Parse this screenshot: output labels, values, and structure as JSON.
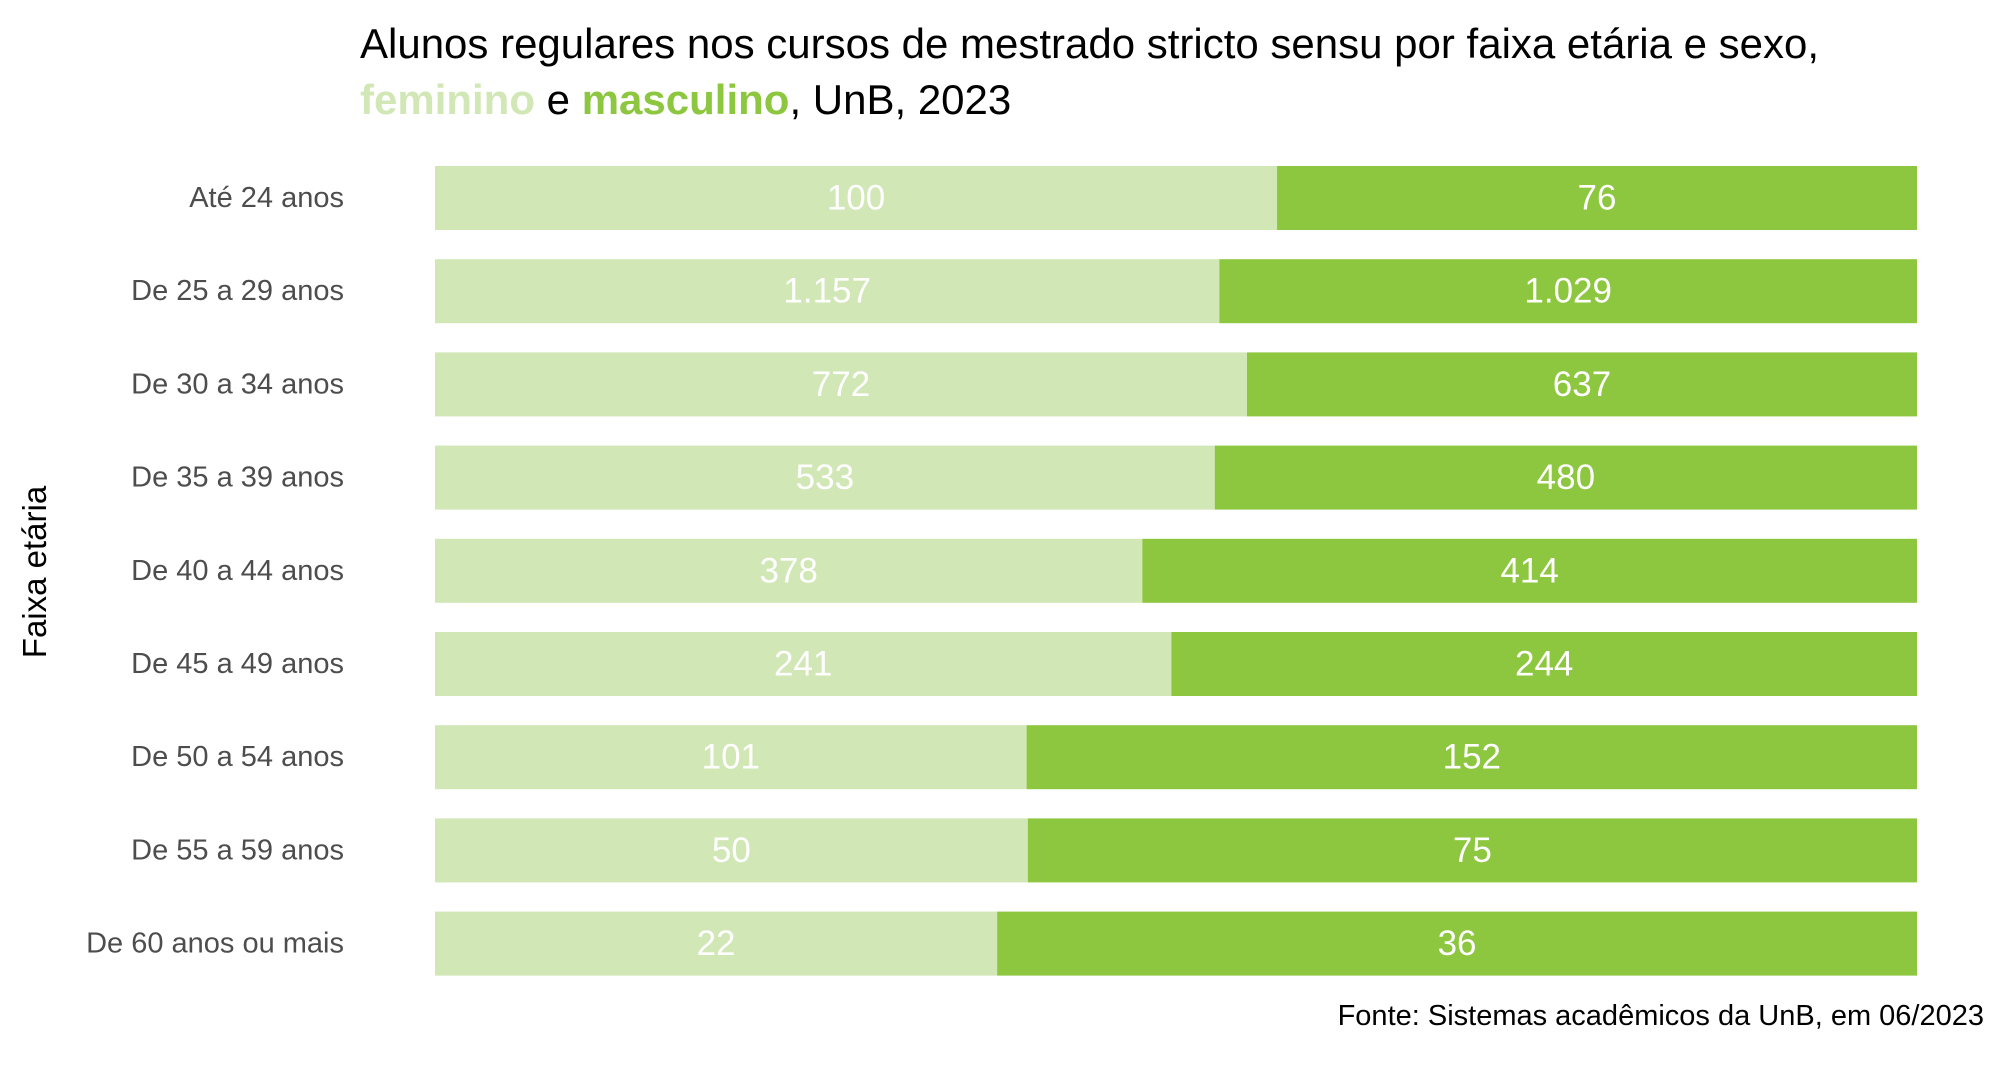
{
  "chart_data": {
    "type": "bar",
    "orientation": "horizontal",
    "stacking": "percent",
    "title": {
      "line1": "Alunos regulares nos cursos de mestrado stricto sensu por faixa etária e sexo,",
      "fem_word": "feminino",
      "connector": " e ",
      "masc_word": "masculino",
      "suffix": ", UnB, 2023"
    },
    "ylabel": "Faixa etária",
    "xlabel": "",
    "categories": [
      "Até 24 anos",
      "De 25 a 29 anos",
      "De 30 a 34 anos",
      "De 35 a 39 anos",
      "De 40 a 44 anos",
      "De 45 a 49 anos",
      "De 50 a 54 anos",
      "De 55 a 59 anos",
      "De 60 anos ou mais"
    ],
    "series": [
      {
        "name": "feminino",
        "color": "#d1e7b6",
        "values": [
          100,
          1157,
          772,
          533,
          378,
          241,
          101,
          50,
          22
        ],
        "labels": [
          "100",
          "1.157",
          "772",
          "533",
          "378",
          "241",
          "101",
          "50",
          "22"
        ]
      },
      {
        "name": "masculino",
        "color": "#8dc63f",
        "values": [
          76,
          1029,
          637,
          480,
          414,
          244,
          152,
          75,
          36
        ],
        "labels": [
          "76",
          "1.029",
          "637",
          "480",
          "414",
          "244",
          "152",
          "75",
          "36"
        ]
      }
    ],
    "grid": false,
    "legend": "none",
    "source": "Fonte: Sistemas acadêmicos da UnB, em 06/2023"
  }
}
